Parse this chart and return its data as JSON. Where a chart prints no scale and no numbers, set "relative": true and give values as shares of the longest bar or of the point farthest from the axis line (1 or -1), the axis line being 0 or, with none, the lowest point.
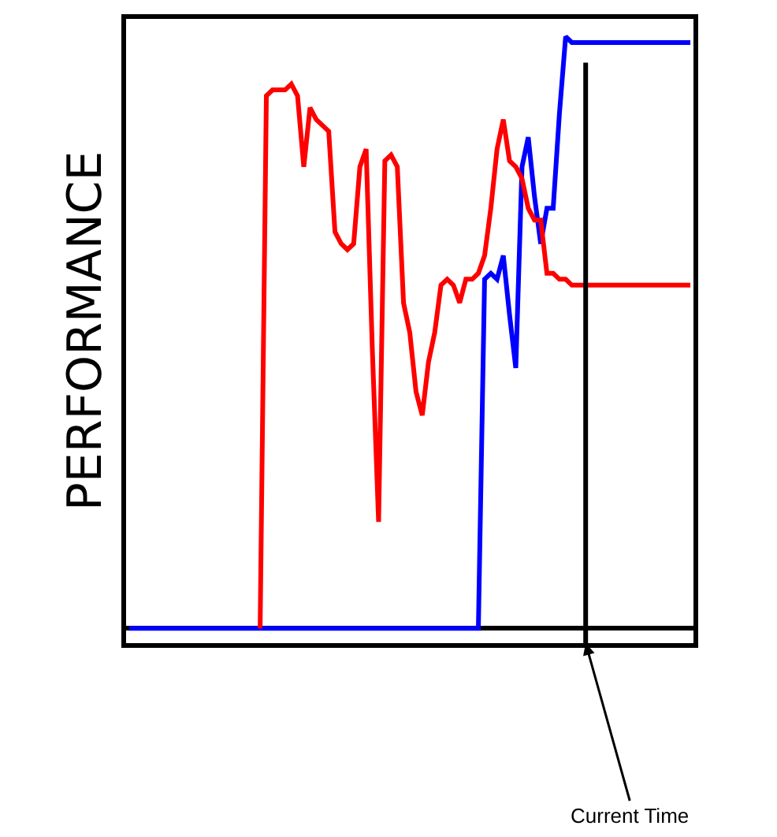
{
  "chart_data": {
    "type": "line",
    "relative": true,
    "ylabel": "PERFORMANCE",
    "categories": [
      null,
      null,
      null,
      null,
      null,
      null,
      null,
      null,
      null,
      null,
      null,
      null,
      null,
      null,
      null,
      null,
      null,
      null,
      null,
      null,
      null,
      null,
      null,
      null,
      null,
      null,
      null,
      null,
      null,
      null,
      null,
      null,
      null,
      null,
      null,
      null,
      null,
      null,
      null,
      null,
      null,
      null,
      null,
      null,
      null,
      null,
      null,
      null,
      null,
      null,
      null,
      null,
      null,
      null,
      null,
      null,
      null,
      null,
      null,
      null,
      null,
      null,
      null,
      null,
      null,
      null,
      null,
      null,
      null,
      null,
      null,
      null,
      null,
      null,
      null,
      null,
      null,
      null,
      null,
      null,
      null,
      null,
      null,
      null,
      null,
      null,
      null,
      null,
      null,
      null,
      null
    ],
    "series": [
      {
        "color": "#0000ff",
        "values": [
          0,
          0,
          0,
          0,
          0,
          0,
          0,
          0,
          0,
          0,
          0,
          0,
          0,
          0,
          0,
          0,
          0,
          0,
          0,
          0,
          0,
          0,
          0,
          0,
          0,
          0,
          0,
          0,
          0,
          0,
          0,
          0,
          0,
          0,
          0,
          0,
          0,
          0,
          0,
          0,
          0,
          0,
          0,
          0,
          0,
          0,
          0,
          0,
          0,
          0,
          0,
          0,
          0,
          0,
          0,
          0,
          0,
          0.59,
          0.6,
          0.59,
          0.63,
          0.53,
          0.44,
          0.78,
          0.83,
          0.73,
          0.65,
          0.71,
          0.71,
          0.87,
          1,
          0.99,
          0.99,
          0.99,
          0.99,
          0.99,
          0.99,
          0.99,
          0.99,
          0.99,
          0.99,
          0.99,
          0.99,
          0.99,
          0.99,
          0.99,
          0.99,
          0.99,
          0.99,
          0.99,
          0.99
        ]
      },
      {
        "color": "#ff0000",
        "values": [
          null,
          null,
          null,
          null,
          null,
          null,
          null,
          null,
          null,
          null,
          null,
          null,
          null,
          null,
          null,
          null,
          null,
          null,
          null,
          null,
          null,
          0,
          0.9,
          0.91,
          0.91,
          0.91,
          0.92,
          0.9,
          0.78,
          0.88,
          0.86,
          0.85,
          0.84,
          0.67,
          0.65,
          0.64,
          0.65,
          0.78,
          0.81,
          0.47,
          0.18,
          0.79,
          0.8,
          0.78,
          0.55,
          0.5,
          0.4,
          0.36,
          0.45,
          0.5,
          0.58,
          0.59,
          0.58,
          0.55,
          0.59,
          0.59,
          0.6,
          0.63,
          0.71,
          0.81,
          0.86,
          0.79,
          0.78,
          0.76,
          0.71,
          0.69,
          0.69,
          0.6,
          0.6,
          0.59,
          0.59,
          0.58,
          0.58,
          0.58,
          0.58,
          0.58,
          0.58,
          0.58,
          0.58,
          0.58,
          0.58,
          0.58,
          0.58,
          0.58,
          0.58,
          0.58,
          0.58,
          0.58,
          0.58,
          0.58,
          0.58
        ]
      }
    ],
    "annotations": [
      "Current Time"
    ],
    "grid": false,
    "marker": "none",
    "line_style": "solid"
  }
}
